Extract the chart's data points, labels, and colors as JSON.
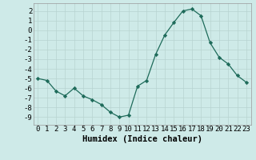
{
  "x": [
    0,
    1,
    2,
    3,
    4,
    5,
    6,
    7,
    8,
    9,
    10,
    11,
    12,
    13,
    14,
    15,
    16,
    17,
    18,
    19,
    20,
    21,
    22,
    23
  ],
  "y": [
    -5.0,
    -5.2,
    -6.3,
    -6.8,
    -6.0,
    -6.8,
    -7.2,
    -7.7,
    -8.5,
    -9.0,
    -8.8,
    -5.8,
    -5.2,
    -2.5,
    -0.5,
    0.8,
    2.0,
    2.2,
    1.5,
    -1.3,
    -2.8,
    -3.5,
    -4.7,
    -5.4
  ],
  "xlabel": "Humidex (Indice chaleur)",
  "xlim": [
    -0.5,
    23.5
  ],
  "ylim": [
    -9.8,
    2.8
  ],
  "yticks": [
    2,
    1,
    0,
    -1,
    -2,
    -3,
    -4,
    -5,
    -6,
    -7,
    -8,
    -9
  ],
  "xticks": [
    0,
    1,
    2,
    3,
    4,
    5,
    6,
    7,
    8,
    9,
    10,
    11,
    12,
    13,
    14,
    15,
    16,
    17,
    18,
    19,
    20,
    21,
    22,
    23
  ],
  "line_color": "#1e6b5a",
  "marker_color": "#1e6b5a",
  "bg_color": "#ceeae8",
  "grid_color": "#b8d4d0",
  "xlabel_fontsize": 7.5,
  "tick_fontsize": 6.5
}
